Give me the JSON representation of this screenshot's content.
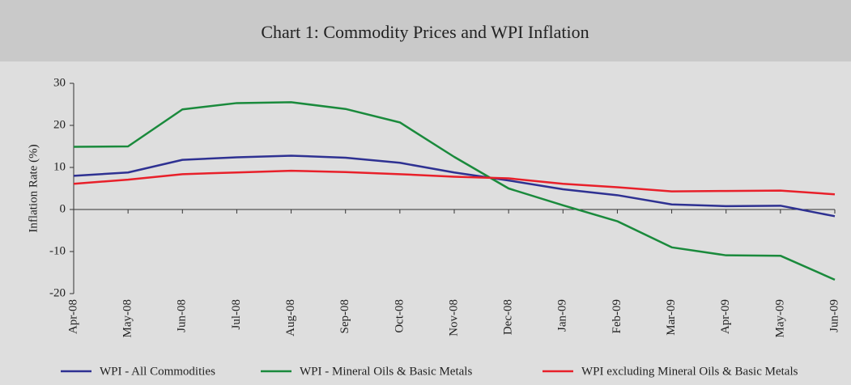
{
  "chart_data": {
    "type": "line",
    "title": "Chart 1: Commodity Prices and WPI Inflation",
    "y_label": "Inflation Rate (%)",
    "categories": [
      "Apr-08",
      "May-08",
      "Jun-08",
      "Jul-08",
      "Aug-08",
      "Sep-08",
      "Oct-08",
      "Nov-08",
      "Dec-08",
      "Jan-09",
      "Feb-09",
      "Mar-09",
      "Apr-09",
      "May-09",
      "Jun-09"
    ],
    "series": [
      {
        "name": "WPI - All Commodities",
        "color": "#2e3192",
        "values": [
          8.0,
          8.8,
          11.8,
          12.4,
          12.8,
          12.3,
          11.1,
          8.8,
          6.9,
          4.8,
          3.4,
          1.2,
          0.8,
          0.9,
          -1.6
        ]
      },
      {
        "name": "WPI - Mineral Oils & Basic Metals",
        "color": "#1a8a3c",
        "values": [
          14.9,
          15.0,
          23.8,
          25.3,
          25.5,
          23.9,
          20.7,
          12.5,
          5.0,
          1.0,
          -2.8,
          -9.0,
          -10.9,
          -11.0,
          -16.7
        ]
      },
      {
        "name": "WPI excluding Mineral Oils & Basic Metals",
        "color": "#e8202a",
        "values": [
          6.1,
          7.1,
          8.4,
          8.8,
          9.2,
          8.9,
          8.4,
          7.8,
          7.4,
          6.1,
          5.3,
          4.3,
          4.4,
          4.5,
          3.6
        ]
      }
    ],
    "ylim": [
      -20,
      30
    ],
    "yticks": [
      -20,
      -10,
      0,
      10,
      20,
      30
    ]
  }
}
